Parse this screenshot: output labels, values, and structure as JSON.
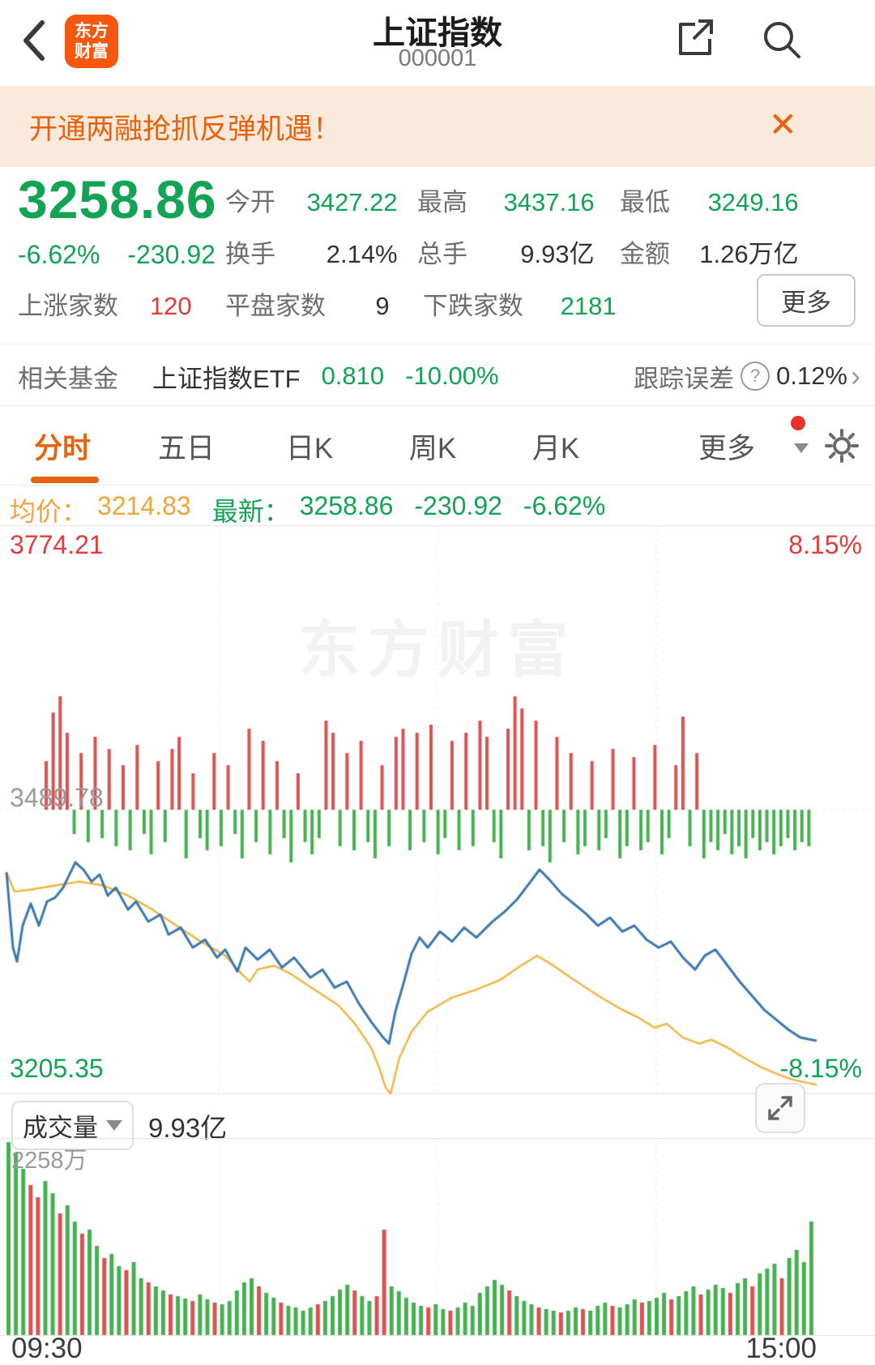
{
  "header": {
    "title": "上证指数",
    "code": "000001",
    "logo_line1": "东方",
    "logo_line2": "财富"
  },
  "banner": {
    "text": "开通两融抢抓反弹机遇！"
  },
  "quote": {
    "price": "3258.86",
    "change_pct": "-6.62%",
    "change": "-230.92",
    "stats": [
      {
        "label": "今开",
        "value": "3427.22"
      },
      {
        "label": "最高",
        "value": "3437.16"
      },
      {
        "label": "最低",
        "value": "3249.16"
      },
      {
        "label": "换手",
        "value": "2.14%"
      },
      {
        "label": "总手",
        "value": "9.93亿"
      },
      {
        "label": "金额",
        "value": "1.26万亿"
      },
      {
        "label": "上涨家数",
        "value": "120"
      },
      {
        "label": "平盘家数",
        "value": "9"
      },
      {
        "label": "下跌家数",
        "value": "2181"
      }
    ],
    "more_label": "更多"
  },
  "fund": {
    "label": "相关基金",
    "name": "上证指数ETF",
    "nav": "0.810",
    "pct": "-10.00%",
    "err_label": "跟踪误差",
    "err_value": "0.12%"
  },
  "tabs": {
    "items": [
      "分时",
      "五日",
      "日K",
      "周K",
      "月K"
    ],
    "more": "更多"
  },
  "subheader": {
    "avg_label": "均价：",
    "avg": "3214.83",
    "last_label": "最新：",
    "last": "3258.86",
    "chg": "-230.92",
    "pct": "-6.62%"
  },
  "watermark": "东方财富",
  "volume_header": {
    "label": "成交量",
    "value": "9.93亿"
  },
  "chart_data": {
    "type": "line",
    "title": "上证指数 分时走势",
    "y_top": 3774.21,
    "y_mid": 3489.78,
    "y_bottom": 3205.35,
    "labels": {
      "top_left": "3774.21",
      "top_right": "8.15%",
      "mid_left": "3489.78",
      "bottom_left": "3205.35",
      "bottom_right": "-8.15%",
      "vol_max": "2258万"
    },
    "x_axis": [
      "09:30",
      "15:00"
    ],
    "legend": [
      "price-line-blue",
      "avg-line-yellow"
    ],
    "colors": {
      "up": "#d95252",
      "down": "#46b050",
      "price": "#3a77b0",
      "avg": "#f3b33c",
      "grid": "#e6e6e6"
    },
    "price_line": [
      [
        0,
        3427.22
      ],
      [
        0.008,
        3352
      ],
      [
        0.013,
        3338
      ],
      [
        0.02,
        3374
      ],
      [
        0.03,
        3396
      ],
      [
        0.04,
        3374
      ],
      [
        0.05,
        3398
      ],
      [
        0.06,
        3402
      ],
      [
        0.07,
        3412
      ],
      [
        0.085,
        3437.16
      ],
      [
        0.095,
        3430
      ],
      [
        0.105,
        3418
      ],
      [
        0.115,
        3425
      ],
      [
        0.125,
        3404
      ],
      [
        0.135,
        3412
      ],
      [
        0.15,
        3390
      ],
      [
        0.16,
        3398
      ],
      [
        0.175,
        3378
      ],
      [
        0.19,
        3385
      ],
      [
        0.2,
        3365
      ],
      [
        0.215,
        3372
      ],
      [
        0.23,
        3352
      ],
      [
        0.245,
        3360
      ],
      [
        0.26,
        3342
      ],
      [
        0.27,
        3350
      ],
      [
        0.285,
        3328
      ],
      [
        0.295,
        3352
      ],
      [
        0.31,
        3340
      ],
      [
        0.325,
        3350
      ],
      [
        0.34,
        3332
      ],
      [
        0.355,
        3342
      ],
      [
        0.375,
        3322
      ],
      [
        0.39,
        3330
      ],
      [
        0.405,
        3312
      ],
      [
        0.42,
        3318
      ],
      [
        0.435,
        3296
      ],
      [
        0.45,
        3278
      ],
      [
        0.465,
        3262
      ],
      [
        0.472,
        3256
      ],
      [
        0.48,
        3288
      ],
      [
        0.49,
        3316
      ],
      [
        0.5,
        3346
      ],
      [
        0.51,
        3362
      ],
      [
        0.52,
        3352
      ],
      [
        0.535,
        3368
      ],
      [
        0.55,
        3358
      ],
      [
        0.565,
        3372
      ],
      [
        0.58,
        3362
      ],
      [
        0.6,
        3378
      ],
      [
        0.615,
        3388
      ],
      [
        0.63,
        3400
      ],
      [
        0.645,
        3416
      ],
      [
        0.658,
        3430
      ],
      [
        0.67,
        3420
      ],
      [
        0.685,
        3406
      ],
      [
        0.7,
        3396
      ],
      [
        0.715,
        3386
      ],
      [
        0.73,
        3374
      ],
      [
        0.745,
        3382
      ],
      [
        0.76,
        3368
      ],
      [
        0.775,
        3374
      ],
      [
        0.79,
        3360
      ],
      [
        0.805,
        3352
      ],
      [
        0.82,
        3358
      ],
      [
        0.835,
        3342
      ],
      [
        0.85,
        3330
      ],
      [
        0.862,
        3344
      ],
      [
        0.875,
        3350
      ],
      [
        0.89,
        3334
      ],
      [
        0.905,
        3318
      ],
      [
        0.92,
        3304
      ],
      [
        0.935,
        3290
      ],
      [
        0.95,
        3280
      ],
      [
        0.965,
        3270
      ],
      [
        0.98,
        3262
      ],
      [
        1,
        3258.86
      ]
    ],
    "avg_line": [
      [
        0,
        3427
      ],
      [
        0.01,
        3408
      ],
      [
        0.03,
        3410
      ],
      [
        0.06,
        3414
      ],
      [
        0.09,
        3418
      ],
      [
        0.12,
        3414
      ],
      [
        0.15,
        3404
      ],
      [
        0.18,
        3390
      ],
      [
        0.21,
        3374
      ],
      [
        0.24,
        3358
      ],
      [
        0.27,
        3344
      ],
      [
        0.29,
        3326
      ],
      [
        0.3,
        3318
      ],
      [
        0.31,
        3330
      ],
      [
        0.33,
        3334
      ],
      [
        0.35,
        3326
      ],
      [
        0.38,
        3310
      ],
      [
        0.41,
        3294
      ],
      [
        0.43,
        3276
      ],
      [
        0.45,
        3252
      ],
      [
        0.46,
        3232
      ],
      [
        0.468,
        3212
      ],
      [
        0.474,
        3206
      ],
      [
        0.485,
        3242
      ],
      [
        0.5,
        3268
      ],
      [
        0.52,
        3288
      ],
      [
        0.55,
        3302
      ],
      [
        0.58,
        3310
      ],
      [
        0.61,
        3320
      ],
      [
        0.635,
        3334
      ],
      [
        0.655,
        3344
      ],
      [
        0.675,
        3334
      ],
      [
        0.7,
        3320
      ],
      [
        0.73,
        3304
      ],
      [
        0.755,
        3292
      ],
      [
        0.78,
        3282
      ],
      [
        0.8,
        3272
      ],
      [
        0.815,
        3276
      ],
      [
        0.835,
        3262
      ],
      [
        0.855,
        3256
      ],
      [
        0.87,
        3260
      ],
      [
        0.89,
        3252
      ],
      [
        0.91,
        3242
      ],
      [
        0.93,
        3233
      ],
      [
        0.95,
        3226
      ],
      [
        0.97,
        3220
      ],
      [
        1,
        3214.83
      ]
    ],
    "tick_bars_encoding": "positive = red bar above midline, negative = green bar below midline, values in px",
    "tick_bars": [
      60,
      120,
      140,
      95,
      -30,
      70,
      -40,
      90,
      -35,
      75,
      -45,
      55,
      -50,
      80,
      -30,
      -55,
      60,
      -40,
      75,
      90,
      -60,
      45,
      -35,
      -50,
      70,
      -45,
      55,
      -30,
      -60,
      100,
      -40,
      85,
      -55,
      60,
      -35,
      -65,
      45,
      -40,
      -55,
      -35,
      110,
      95,
      -45,
      70,
      -50,
      85,
      -40,
      -60,
      55,
      -45,
      90,
      100,
      -50,
      95,
      -40,
      105,
      -55,
      -35,
      85,
      -50,
      95,
      -45,
      110,
      90,
      -40,
      -60,
      100,
      140,
      125,
      -50,
      110,
      -45,
      -65,
      90,
      -40,
      70,
      -55,
      -45,
      60,
      -50,
      -35,
      75,
      -60,
      -45,
      65,
      -50,
      -40,
      80,
      -55,
      -35,
      55,
      115,
      -45,
      70,
      -60,
      -40,
      -50,
      -30,
      -55,
      -45,
      -60,
      -35,
      -50,
      -40,
      -55,
      -45,
      -35,
      -50,
      -40,
      -45
    ],
    "volume_encoding": "positive = green bar, negative = red bar, values in px of 244px pane",
    "volume_bars": [
      238,
      225,
      205,
      -185,
      -170,
      190,
      175,
      -150,
      160,
      140,
      -125,
      130,
      110,
      -95,
      100,
      85,
      -80,
      90,
      70,
      -65,
      60,
      55,
      -50,
      48,
      45,
      -42,
      50,
      44,
      -40,
      38,
      42,
      55,
      65,
      70,
      -60,
      52,
      46,
      -40,
      36,
      34,
      30,
      34,
      -38,
      42,
      48,
      56,
      62,
      -55,
      48,
      42,
      -48,
      -130,
      60,
      54,
      46,
      40,
      36,
      -34,
      38,
      32,
      -30,
      34,
      40,
      36,
      52,
      60,
      68,
      62,
      -55,
      48,
      42,
      38,
      -34,
      32,
      30,
      -28,
      30,
      34,
      -32,
      30,
      36,
      40,
      -36,
      34,
      38,
      44,
      -40,
      42,
      46,
      52,
      -44,
      48,
      54,
      60,
      -50,
      56,
      62,
      58,
      -52,
      64,
      70,
      -60,
      76,
      82,
      88,
      -70,
      95,
      105,
      90,
      140
    ]
  }
}
